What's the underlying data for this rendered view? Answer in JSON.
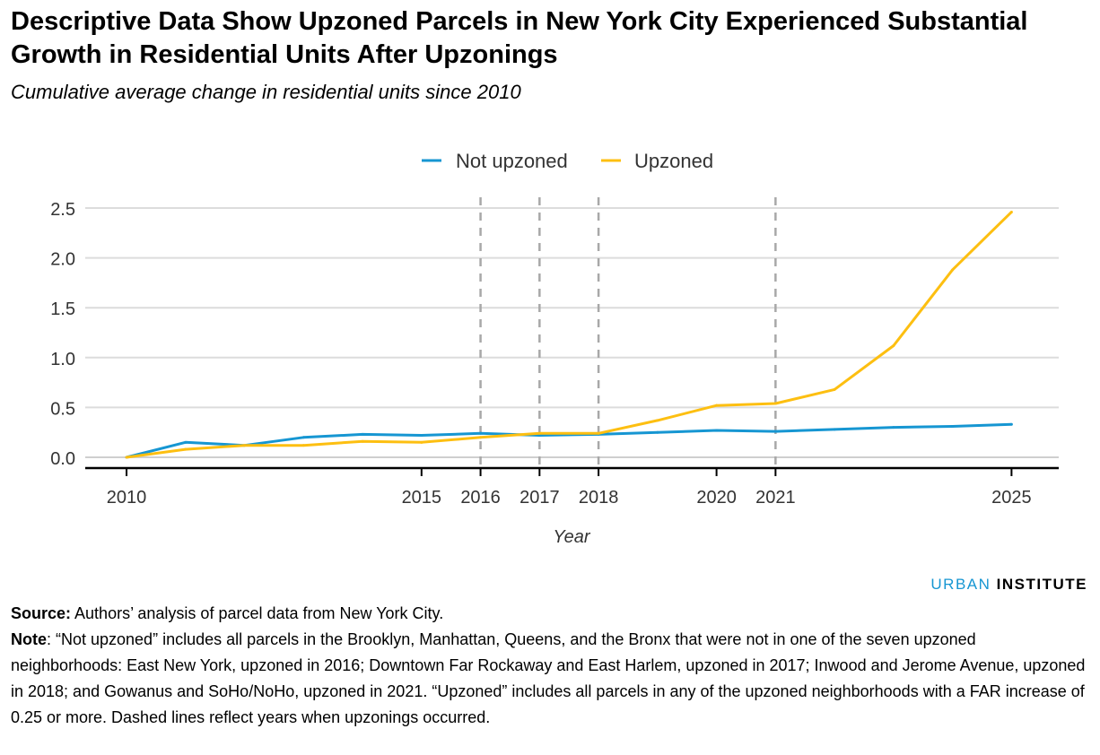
{
  "header": {
    "title": "Descriptive Data Show Upzoned Parcels in New York City Experienced Substantial Growth in Residential Units After Upzonings",
    "subtitle": "Cumulative average change in residential units since 2010"
  },
  "chart_data": {
    "type": "line",
    "xlabel": "Year",
    "ylabel": "",
    "xlim": [
      2009.3,
      2025.8
    ],
    "ylim": [
      0,
      2.5
    ],
    "yticks": [
      0.0,
      0.5,
      1.0,
      1.5,
      2.0,
      2.5
    ],
    "ytick_labels": [
      "0.0",
      "0.5",
      "1.0",
      "1.5",
      "2.0",
      "2.5"
    ],
    "xticks": [
      2010,
      2015,
      2016,
      2017,
      2018,
      2020,
      2021,
      2025
    ],
    "xtick_labels": [
      "2010",
      "2015",
      "2016",
      "2017",
      "2018",
      "2020",
      "2021",
      "2025"
    ],
    "grid": "horizontal",
    "legend_position": "top-center",
    "upzoning_years": [
      2016,
      2017,
      2018,
      2021
    ],
    "x": [
      2010,
      2011,
      2012,
      2013,
      2014,
      2015,
      2016,
      2017,
      2018,
      2019,
      2020,
      2021,
      2022,
      2023,
      2024,
      2025
    ],
    "series": [
      {
        "name": "Not upzoned",
        "color": "#1696d2",
        "values": [
          0.0,
          0.15,
          0.12,
          0.2,
          0.23,
          0.22,
          0.24,
          0.22,
          0.23,
          0.25,
          0.27,
          0.26,
          0.28,
          0.3,
          0.31,
          0.33
        ]
      },
      {
        "name": "Upzoned",
        "color": "#fdbf11",
        "values": [
          0.0,
          0.08,
          0.12,
          0.12,
          0.16,
          0.15,
          0.2,
          0.24,
          0.24,
          0.37,
          0.52,
          0.54,
          0.68,
          1.12,
          1.88,
          2.46
        ]
      }
    ]
  },
  "brand": {
    "part1": "URBAN",
    "part2": "INSTITUTE"
  },
  "notes": {
    "source_label": "Source:",
    "source_text": " Authors’ analysis of parcel data from New York City.",
    "note_label": "Note",
    "note_text": ": “Not upzoned” includes all parcels in the Brooklyn, Manhattan, Queens, and the Bronx that were not in one of the seven upzoned neighborhoods: East New York, upzoned in 2016; Downtown Far Rockaway and East Harlem, upzoned in 2017; Inwood and Jerome Avenue, upzoned in 2018; and Gowanus and SoHo/NoHo, upzoned in 2021. “Upzoned” includes all parcels in any of the upzoned neighborhoods with a FAR increase of 0.25 or more. Dashed lines reflect years when upzonings occurred."
  }
}
